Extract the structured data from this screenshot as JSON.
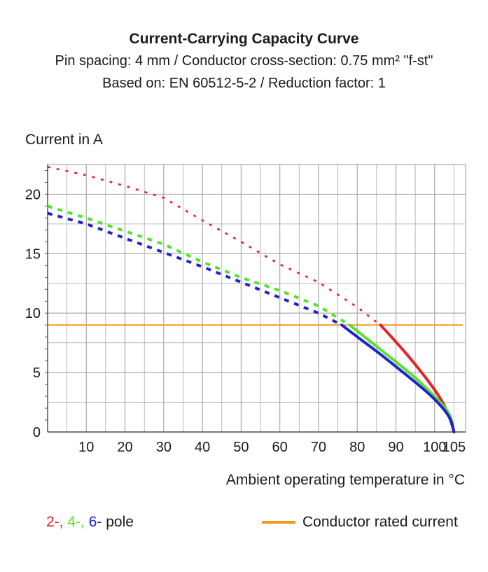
{
  "colors": {
    "two_pole": "#e8202a",
    "four_pole": "#55e22e",
    "six_pole": "#2222cc",
    "rated": "#f59a1e",
    "grid": "#a8a8a8",
    "text": "#1a1a1a"
  },
  "chart_data": {
    "type": "line",
    "title": "Current-Carrying Capacity Curve",
    "subtitle_1": "Pin spacing: 4 mm / Conductor cross-section: 0.75 mm² \"f-st\"",
    "subtitle_2": "Based on: EN 60512-5-2 / Reduction factor: 1",
    "xlabel": "Ambient operating temperature in °C",
    "ylabel": "Current in A",
    "xlim": [
      0,
      108
    ],
    "ylim": [
      0,
      22.5
    ],
    "x_ticks": [
      10,
      20,
      30,
      40,
      50,
      60,
      70,
      80,
      90,
      100,
      105
    ],
    "x_tick_labels": [
      "10",
      "20",
      "30",
      "40",
      "50",
      "60",
      "70",
      "80",
      "90",
      "100",
      "105"
    ],
    "y_ticks": [
      0,
      5,
      10,
      15,
      20
    ],
    "y_tick_labels": [
      "0",
      "5",
      "10",
      "15",
      "20"
    ],
    "grid": true,
    "series": [
      {
        "name": "2-pole",
        "key": "two_pole",
        "dashed_points": [
          [
            0,
            22.3
          ],
          [
            10,
            21.6
          ],
          [
            20,
            20.7
          ],
          [
            30,
            19.7
          ],
          [
            40,
            17.8
          ],
          [
            50,
            16.0
          ],
          [
            60,
            14.1
          ],
          [
            70,
            12.6
          ],
          [
            80,
            10.5
          ],
          [
            86,
            9.0
          ]
        ],
        "solid_points": [
          [
            86,
            9.0
          ],
          [
            90,
            7.6
          ],
          [
            95,
            5.7
          ],
          [
            100,
            3.6
          ],
          [
            103,
            2.0
          ],
          [
            104.5,
            0.6
          ],
          [
            105,
            0.0
          ]
        ]
      },
      {
        "name": "4-pole",
        "key": "four_pole",
        "dashed_points": [
          [
            0,
            19.0
          ],
          [
            10,
            18.0
          ],
          [
            20,
            16.9
          ],
          [
            30,
            15.8
          ],
          [
            40,
            14.3
          ],
          [
            50,
            13.0
          ],
          [
            60,
            11.9
          ],
          [
            70,
            10.6
          ],
          [
            78,
            9.0
          ]
        ],
        "solid_points": [
          [
            78,
            9.0
          ],
          [
            80,
            8.5
          ],
          [
            85,
            7.2
          ],
          [
            90,
            5.9
          ],
          [
            95,
            4.6
          ],
          [
            100,
            3.0
          ],
          [
            104,
            1.6
          ],
          [
            105,
            0.0
          ]
        ]
      },
      {
        "name": "6-pole",
        "key": "six_pole",
        "dashed_points": [
          [
            0,
            18.4
          ],
          [
            10,
            17.5
          ],
          [
            20,
            16.3
          ],
          [
            30,
            15.1
          ],
          [
            40,
            13.9
          ],
          [
            50,
            12.6
          ],
          [
            60,
            11.3
          ],
          [
            70,
            10.0
          ],
          [
            76,
            9.0
          ]
        ],
        "solid_points": [
          [
            76,
            9.0
          ],
          [
            80,
            8.0
          ],
          [
            85,
            6.8
          ],
          [
            90,
            5.5
          ],
          [
            95,
            4.2
          ],
          [
            100,
            2.8
          ],
          [
            104,
            1.3
          ],
          [
            105,
            0.0
          ]
        ]
      }
    ],
    "rated_current": {
      "name": "Conductor rated current",
      "value": 9.0,
      "x_range": [
        0,
        108
      ]
    }
  },
  "legend": {
    "two": "2-,",
    "four": "4-,",
    "six": "6-",
    "pole": "pole",
    "rated": "Conductor rated current"
  }
}
